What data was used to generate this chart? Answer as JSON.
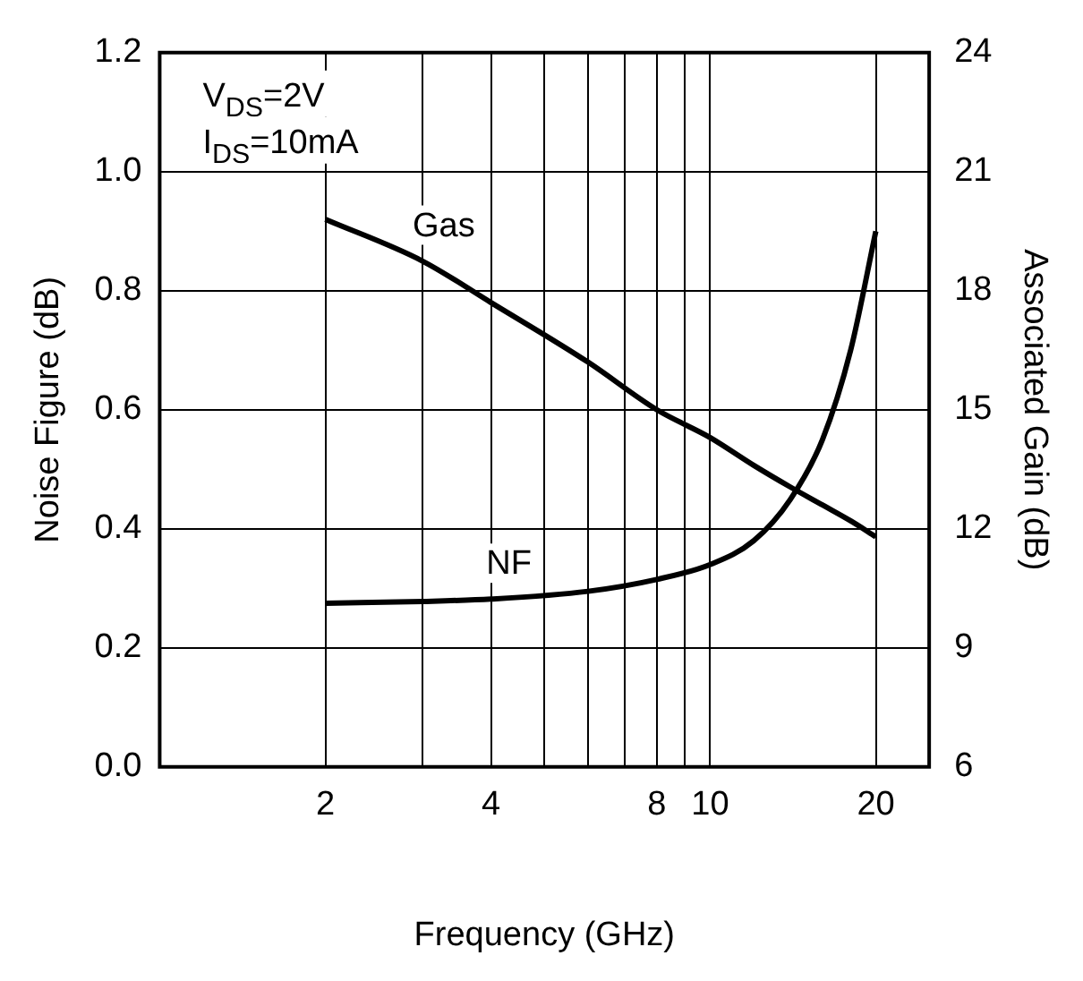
{
  "chart_data": {
    "type": "line",
    "xlabel": "Frequency (GHz)",
    "ylabel": "Noise Figure (dB)",
    "y2label": "Associated Gain (dB)",
    "annotations": [
      "V$_{DS}$=2V",
      "I$_{DS}$=10mA"
    ],
    "log": "x",
    "grid": true,
    "legend": false,
    "marker": "none",
    "line_style": "solid",
    "xlim": [
      1,
      25
    ],
    "xticks": [
      {
        "value": 2,
        "label": "2"
      },
      {
        "value": 3,
        "label": null
      },
      {
        "value": 4,
        "label": "4"
      },
      {
        "value": 5,
        "label": null
      },
      {
        "value": 6,
        "label": null
      },
      {
        "value": 7,
        "label": null
      },
      {
        "value": 8,
        "label": "8"
      },
      {
        "value": 9,
        "label": null
      },
      {
        "value": 10,
        "label": "10"
      },
      {
        "value": 20,
        "label": "20"
      }
    ],
    "ylim": [
      0,
      1.2
    ],
    "yticks": [
      {
        "value": 0,
        "label": "0.0"
      },
      {
        "value": 0.2,
        "label": "0.2"
      },
      {
        "value": 0.4,
        "label": "0.4"
      },
      {
        "value": 0.6,
        "label": "0.6"
      },
      {
        "value": 0.8,
        "label": "0.8"
      },
      {
        "value": 1,
        "label": "1.0"
      },
      {
        "value": 1.2,
        "label": "1.2"
      }
    ],
    "y2lim": [
      6,
      24
    ],
    "y2ticks": [
      6,
      9,
      12,
      15,
      18,
      21,
      24
    ],
    "x": [
      2,
      3,
      4,
      6,
      8,
      10,
      12,
      14,
      16,
      18,
      20
    ],
    "series": [
      {
        "name": "NF",
        "color": "#000000",
        "values": [
          0.275,
          0.278,
          0.282,
          0.295,
          0.315,
          0.34,
          0.38,
          0.45,
          0.55,
          0.7,
          0.9
        ]
      },
      {
        "name": "Gas",
        "color": "#000000",
        "axis": "y2",
        "values": [
          19.8,
          18.75,
          17.7,
          16.2,
          15,
          14.3,
          13.6,
          13.05,
          12.6,
          12.2,
          11.8
        ]
      }
    ]
  }
}
